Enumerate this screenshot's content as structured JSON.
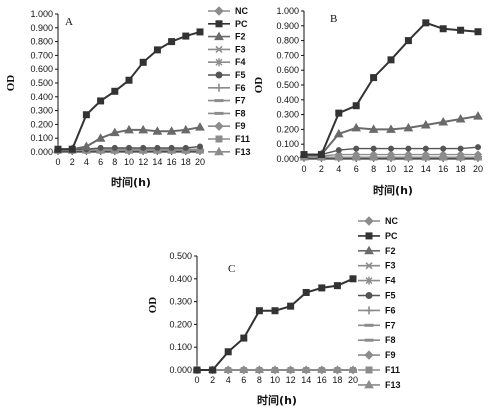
{
  "chart_data": [
    {
      "type": "line",
      "panel": "A",
      "ylabel": "OD",
      "xlabel": "时间(h)",
      "x": [
        0,
        2,
        4,
        6,
        8,
        10,
        12,
        14,
        16,
        18,
        20
      ],
      "ylim": [
        0,
        1.0
      ],
      "yticks": [
        "0.000",
        "0.100",
        "0.200",
        "0.300",
        "0.400",
        "0.500",
        "0.600",
        "0.700",
        "0.800",
        "0.900",
        "1.000"
      ],
      "grid": false,
      "legend": "right",
      "series": [
        {
          "name": "NC",
          "values": [
            0.02,
            0.02,
            0.02,
            0.02,
            0.02,
            0.02,
            0.02,
            0.02,
            0.02,
            0.02,
            0.02
          ]
        },
        {
          "name": "PC",
          "values": [
            0.02,
            0.02,
            0.27,
            0.37,
            0.44,
            0.52,
            0.65,
            0.74,
            0.8,
            0.84,
            0.87
          ]
        },
        {
          "name": "F2",
          "values": [
            0.02,
            0.02,
            0.04,
            0.1,
            0.14,
            0.16,
            0.16,
            0.15,
            0.15,
            0.16,
            0.18
          ]
        },
        {
          "name": "F3",
          "values": [
            0.01,
            0.01,
            0.01,
            0.01,
            0.01,
            0.01,
            0.01,
            0.01,
            0.01,
            0.01,
            0.01
          ]
        },
        {
          "name": "F4",
          "values": [
            0.01,
            0.01,
            0.01,
            0.01,
            0.01,
            0.01,
            0.01,
            0.01,
            0.01,
            0.01,
            0.01
          ]
        },
        {
          "name": "F5",
          "values": [
            0.02,
            0.02,
            0.02,
            0.03,
            0.03,
            0.03,
            0.03,
            0.03,
            0.03,
            0.03,
            0.04
          ]
        },
        {
          "name": "F6",
          "values": [
            0.01,
            0.01,
            0.01,
            0.01,
            0.01,
            0.01,
            0.01,
            0.01,
            0.01,
            0.01,
            0.01
          ]
        },
        {
          "name": "F7",
          "values": [
            0.01,
            0.01,
            0.01,
            0.01,
            0.01,
            0.01,
            0.01,
            0.01,
            0.01,
            0.01,
            0.01
          ]
        },
        {
          "name": "F8",
          "values": [
            0.01,
            0.01,
            0.01,
            0.01,
            0.01,
            0.01,
            0.01,
            0.01,
            0.01,
            0.01,
            0.01
          ]
        },
        {
          "name": "F9",
          "values": [
            0.01,
            0.01,
            0.01,
            0.01,
            0.01,
            0.01,
            0.01,
            0.01,
            0.01,
            0.01,
            0.01
          ]
        },
        {
          "name": "F11",
          "values": [
            0.01,
            0.01,
            0.01,
            0.01,
            0.01,
            0.01,
            0.01,
            0.01,
            0.01,
            0.01,
            0.01
          ]
        },
        {
          "name": "F13",
          "values": [
            0.01,
            0.01,
            0.01,
            0.01,
            0.01,
            0.01,
            0.01,
            0.01,
            0.01,
            0.01,
            0.01
          ]
        }
      ]
    },
    {
      "type": "line",
      "panel": "B",
      "ylabel": "OD",
      "xlabel": "时间(h)",
      "x": [
        0,
        2,
        4,
        6,
        8,
        10,
        12,
        14,
        16,
        18,
        20
      ],
      "ylim": [
        0,
        1.0
      ],
      "yticks": [
        "0.000",
        "0.100",
        "0.200",
        "0.300",
        "0.400",
        "0.500",
        "0.600",
        "0.700",
        "0.800",
        "0.900",
        "1.000"
      ],
      "grid": false,
      "legend": "none",
      "series": [
        {
          "name": "NC",
          "values": [
            0.02,
            0.02,
            0.03,
            0.03,
            0.03,
            0.03,
            0.03,
            0.03,
            0.03,
            0.03,
            0.03
          ]
        },
        {
          "name": "PC",
          "values": [
            0.03,
            0.03,
            0.31,
            0.36,
            0.55,
            0.67,
            0.8,
            0.92,
            0.88,
            0.87,
            0.86
          ]
        },
        {
          "name": "F2",
          "values": [
            0.03,
            0.03,
            0.17,
            0.21,
            0.2,
            0.2,
            0.21,
            0.23,
            0.25,
            0.27,
            0.29
          ]
        },
        {
          "name": "F3",
          "values": [
            0.01,
            0.01,
            0.01,
            0.01,
            0.01,
            0.01,
            0.01,
            0.01,
            0.01,
            0.01,
            0.01
          ]
        },
        {
          "name": "F4",
          "values": [
            0.01,
            0.01,
            0.01,
            0.01,
            0.01,
            0.01,
            0.01,
            0.01,
            0.01,
            0.01,
            0.01
          ]
        },
        {
          "name": "F5",
          "values": [
            0.03,
            0.03,
            0.06,
            0.07,
            0.07,
            0.07,
            0.07,
            0.07,
            0.07,
            0.07,
            0.08
          ]
        },
        {
          "name": "F6",
          "values": [
            0.01,
            0.01,
            0.01,
            0.01,
            0.01,
            0.01,
            0.01,
            0.01,
            0.01,
            0.01,
            0.01
          ]
        },
        {
          "name": "F7",
          "values": [
            0.01,
            0.01,
            0.01,
            0.01,
            0.01,
            0.01,
            0.01,
            0.01,
            0.01,
            0.01,
            0.01
          ]
        },
        {
          "name": "F8",
          "values": [
            0.01,
            0.01,
            0.01,
            0.01,
            0.01,
            0.01,
            0.01,
            0.01,
            0.01,
            0.01,
            0.01
          ]
        },
        {
          "name": "F9",
          "values": [
            0.01,
            0.01,
            0.01,
            0.01,
            0.01,
            0.01,
            0.01,
            0.01,
            0.01,
            0.01,
            0.01
          ]
        },
        {
          "name": "F11",
          "values": [
            0.01,
            0.01,
            0.01,
            0.01,
            0.01,
            0.01,
            0.01,
            0.01,
            0.01,
            0.01,
            0.01
          ]
        },
        {
          "name": "F13",
          "values": [
            0.01,
            0.01,
            0.01,
            0.01,
            0.01,
            0.01,
            0.01,
            0.01,
            0.01,
            0.01,
            0.01
          ]
        }
      ]
    },
    {
      "type": "line",
      "panel": "C",
      "ylabel": "OD",
      "xlabel": "时间(h)",
      "x": [
        0,
        2,
        4,
        6,
        8,
        10,
        12,
        14,
        16,
        18,
        20
      ],
      "ylim": [
        0,
        0.5
      ],
      "yticks": [
        "0.000",
        "0.100",
        "0.200",
        "0.300",
        "0.400",
        "0.500"
      ],
      "grid": false,
      "legend": "right",
      "series": [
        {
          "name": "NC",
          "values": [
            0.0,
            0.0,
            0.0,
            0.0,
            0.0,
            0.0,
            0.0,
            0.0,
            0.0,
            0.0,
            0.0
          ]
        },
        {
          "name": "PC",
          "values": [
            0.0,
            0.0,
            0.08,
            0.14,
            0.26,
            0.26,
            0.28,
            0.34,
            0.36,
            0.37,
            0.4
          ]
        },
        {
          "name": "F2",
          "values": [
            0.0,
            0.0,
            0.0,
            0.0,
            0.0,
            0.0,
            0.0,
            0.0,
            0.0,
            0.0,
            0.0
          ]
        },
        {
          "name": "F3",
          "values": [
            0.0,
            0.0,
            0.0,
            0.0,
            0.0,
            0.0,
            0.0,
            0.0,
            0.0,
            0.0,
            0.0
          ]
        },
        {
          "name": "F4",
          "values": [
            0.0,
            0.0,
            0.0,
            0.0,
            0.0,
            0.0,
            0.0,
            0.0,
            0.0,
            0.0,
            0.0
          ]
        },
        {
          "name": "F5",
          "values": [
            0.0,
            0.0,
            0.0,
            0.0,
            0.0,
            0.0,
            0.0,
            0.0,
            0.0,
            0.0,
            0.0
          ]
        },
        {
          "name": "F6",
          "values": [
            0.0,
            0.0,
            0.0,
            0.0,
            0.0,
            0.0,
            0.0,
            0.0,
            0.0,
            0.0,
            0.0
          ]
        },
        {
          "name": "F7",
          "values": [
            0.0,
            0.0,
            0.0,
            0.0,
            0.0,
            0.0,
            0.0,
            0.0,
            0.0,
            0.0,
            0.0
          ]
        },
        {
          "name": "F8",
          "values": [
            0.0,
            0.0,
            0.0,
            0.0,
            0.0,
            0.0,
            0.0,
            0.0,
            0.0,
            0.0,
            0.0
          ]
        },
        {
          "name": "F9",
          "values": [
            0.0,
            0.0,
            0.0,
            0.0,
            0.0,
            0.0,
            0.0,
            0.0,
            0.0,
            0.0,
            0.0
          ]
        },
        {
          "name": "F11",
          "values": [
            0.0,
            0.0,
            0.0,
            0.0,
            0.0,
            0.0,
            0.0,
            0.0,
            0.0,
            0.0,
            0.0
          ]
        },
        {
          "name": "F13",
          "values": [
            0.0,
            0.0,
            0.0,
            0.0,
            0.0,
            0.0,
            0.0,
            0.0,
            0.0,
            0.0,
            0.0
          ]
        }
      ]
    }
  ],
  "legend_entries": [
    {
      "name": "NC",
      "marker": "diamond"
    },
    {
      "name": "PC",
      "marker": "square"
    },
    {
      "name": "F2",
      "marker": "triangle"
    },
    {
      "name": "F3",
      "marker": "x"
    },
    {
      "name": "F4",
      "marker": "star"
    },
    {
      "name": "F5",
      "marker": "circle"
    },
    {
      "name": "F6",
      "marker": "plus"
    },
    {
      "name": "F7",
      "marker": "dash"
    },
    {
      "name": "F8",
      "marker": "dash"
    },
    {
      "name": "F9",
      "marker": "diamond"
    },
    {
      "name": "F11",
      "marker": "square"
    },
    {
      "name": "F13",
      "marker": "triangle"
    }
  ],
  "colors": {
    "PC": "#333333",
    "F2": "#6a6a6a",
    "F5": "#555555",
    "baseline": "#8c8c8c",
    "axis": "#111111"
  }
}
